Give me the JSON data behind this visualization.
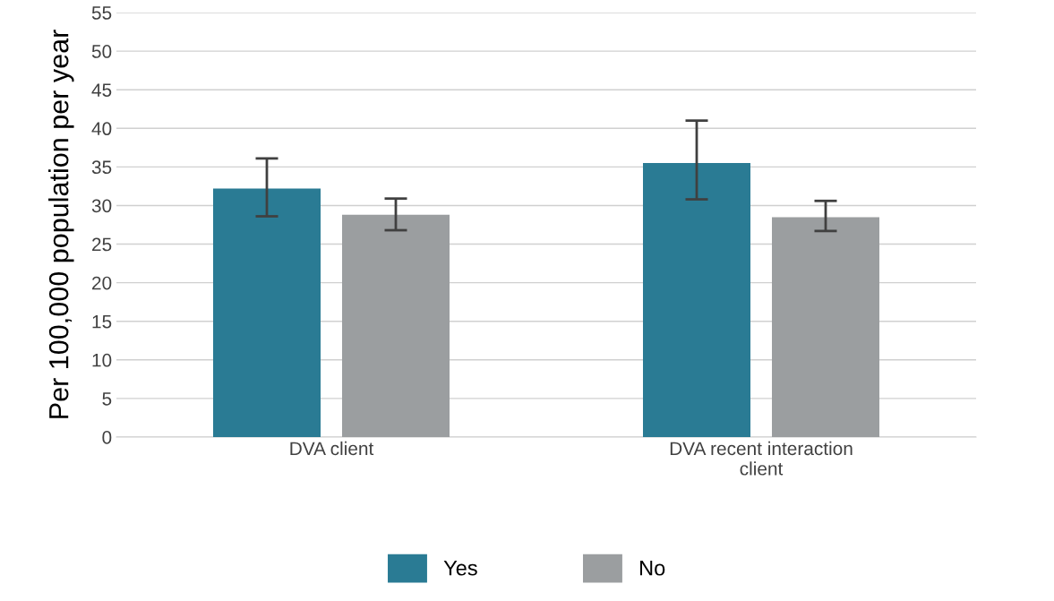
{
  "chart_data": {
    "type": "bar",
    "ylabel": "Per 100,000 population per year",
    "categories": [
      "DVA client",
      "DVA recent interaction\nclient"
    ],
    "series": [
      {
        "name": "Yes",
        "color": "#2a7b94",
        "values": [
          32.2,
          35.5
        ],
        "errors": [
          [
            28.6,
            36.1
          ],
          [
            30.8,
            41.0
          ]
        ]
      },
      {
        "name": "No",
        "color": "#9b9ea0",
        "values": [
          28.8,
          28.5
        ],
        "errors": [
          [
            26.8,
            30.9
          ],
          [
            26.7,
            30.6
          ]
        ]
      }
    ],
    "ylim": [
      0,
      55
    ],
    "yticks": [
      0,
      5,
      10,
      15,
      20,
      25,
      30,
      35,
      40,
      45,
      50,
      55
    ],
    "grid": "y",
    "legend": "bottom"
  }
}
